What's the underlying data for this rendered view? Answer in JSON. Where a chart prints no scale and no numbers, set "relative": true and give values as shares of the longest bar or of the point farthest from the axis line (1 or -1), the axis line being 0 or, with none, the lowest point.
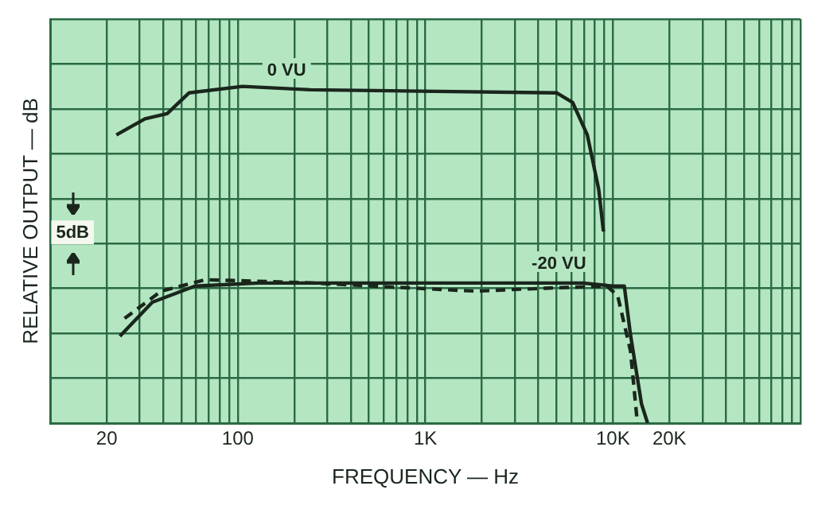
{
  "chart_data": {
    "type": "line",
    "relative": true,
    "xlabel": "FREQUENCY — Hz",
    "ylabel": "RELATIVE OUTPUT — dB",
    "annotations": [
      "5dB"
    ],
    "log": "x",
    "grid": true,
    "legend": false,
    "xlim": [
      10,
      100000
    ],
    "xticks": [
      {
        "value": 10,
        "label": null
      },
      {
        "value": 20,
        "label": "20"
      },
      {
        "value": 30,
        "label": null
      },
      {
        "value": 40,
        "label": null
      },
      {
        "value": 50,
        "label": null
      },
      {
        "value": 60,
        "label": null
      },
      {
        "value": 70,
        "label": null
      },
      {
        "value": 80,
        "label": null
      },
      {
        "value": 90,
        "label": null
      },
      {
        "value": 100,
        "label": "100"
      },
      {
        "value": 200,
        "label": null
      },
      {
        "value": 300,
        "label": null
      },
      {
        "value": 400,
        "label": null
      },
      {
        "value": 500,
        "label": null
      },
      {
        "value": 600,
        "label": null
      },
      {
        "value": 700,
        "label": null
      },
      {
        "value": 800,
        "label": null
      },
      {
        "value": 900,
        "label": null
      },
      {
        "value": 1000,
        "label": "1K"
      },
      {
        "value": 2000,
        "label": null
      },
      {
        "value": 3000,
        "label": null
      },
      {
        "value": 4000,
        "label": null
      },
      {
        "value": 5000,
        "label": null
      },
      {
        "value": 6000,
        "label": null
      },
      {
        "value": 7000,
        "label": null
      },
      {
        "value": 8000,
        "label": null
      },
      {
        "value": 9000,
        "label": null
      },
      {
        "value": 10000,
        "label": "10K"
      },
      {
        "value": 20000,
        "label": "20K"
      },
      {
        "value": 30000,
        "label": null
      },
      {
        "value": 40000,
        "label": null
      },
      {
        "value": 50000,
        "label": null
      },
      {
        "value": 60000,
        "label": null
      },
      {
        "value": 70000,
        "label": null
      },
      {
        "value": 80000,
        "label": null
      },
      {
        "value": 90000,
        "label": null
      },
      {
        "value": 100000,
        "label": null
      }
    ],
    "series": [
      {
        "name": "0 VU",
        "color": "#1a261c",
        "line_style": "solid",
        "x": [
          22.5,
          32,
          42,
          55,
          106,
          244,
          5000,
          6100,
          7300,
          8400,
          8900
        ],
        "values": [
          0.856,
          0.904,
          0.919,
          0.981,
          1,
          0.99,
          0.981,
          0.952,
          0.856,
          0.694,
          0.569
        ]
      },
      {
        "name": "-20 VU",
        "color": "#1a261c",
        "line_style": "solid",
        "x": [
          23.5,
          35,
          59,
          129,
          940,
          6900,
          10000,
          11500,
          12400,
          14200,
          15300
        ],
        "values": [
          0.258,
          0.359,
          0.407,
          0.416,
          0.416,
          0.416,
          0.407,
          0.407,
          0.263,
          0.057,
          0
        ]
      },
      {
        "color": "#1a261c",
        "line_style": "dashed",
        "x": [
          24.9,
          39,
          67,
          254,
          1850,
          5000,
          9300,
          10600,
          12400,
          13500
        ],
        "values": [
          0.311,
          0.392,
          0.426,
          0.416,
          0.392,
          0.402,
          0.407,
          0.378,
          0.215,
          0
        ]
      }
    ]
  }
}
